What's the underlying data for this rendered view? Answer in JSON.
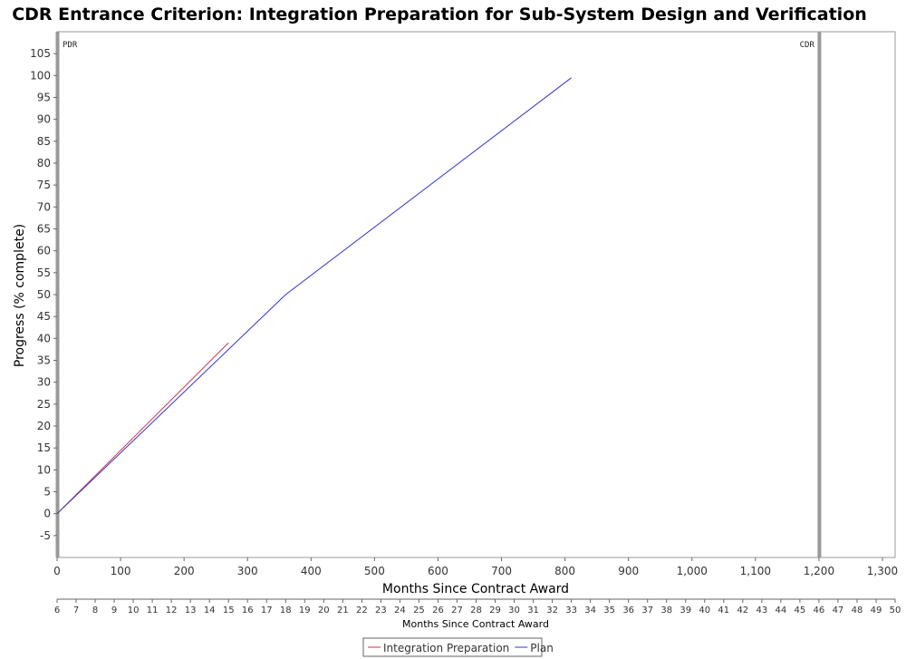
{
  "chart_data": {
    "type": "line",
    "title": "CDR Entrance Criterion: Integration Preparation for Sub-System Design and Verification",
    "xlabel": "Months Since Contract Award",
    "ylabel": "Progress (% complete)",
    "xlim": [
      0,
      1320
    ],
    "ylim": [
      -10,
      110
    ],
    "x_ticks": [
      "0",
      "100",
      "200",
      "300",
      "400",
      "500",
      "600",
      "700",
      "800",
      "900",
      "1,000",
      "1,100",
      "1,200",
      "1,300"
    ],
    "y_ticks": [
      "-5",
      "0",
      "5",
      "10",
      "15",
      "20",
      "25",
      "30",
      "35",
      "40",
      "45",
      "50",
      "55",
      "60",
      "65",
      "70",
      "75",
      "80",
      "85",
      "90",
      "95",
      "100",
      "105"
    ],
    "grid": false,
    "secondary_axis": {
      "label": "Months Since Contract Award",
      "ticks": [
        "6",
        "7",
        "8",
        "9",
        "10",
        "11",
        "12",
        "13",
        "14",
        "15",
        "16",
        "17",
        "18",
        "19",
        "20",
        "21",
        "22",
        "23",
        "24",
        "25",
        "26",
        "27",
        "28",
        "29",
        "30",
        "31",
        "32",
        "33",
        "34",
        "35",
        "36",
        "37",
        "38",
        "39",
        "40",
        "41",
        "42",
        "43",
        "44",
        "45",
        "46",
        "47",
        "48",
        "49",
        "50"
      ]
    },
    "markers": [
      {
        "label": "PDR",
        "x": 0
      },
      {
        "label": "CDR",
        "x": 1200
      }
    ],
    "series": [
      {
        "name": "Integration Preparation",
        "color": "#cc3355",
        "x": [
          0,
          270
        ],
        "y": [
          0,
          39
        ]
      },
      {
        "name": "Plan",
        "color": "#3333cc",
        "x": [
          0,
          360,
          810
        ],
        "y": [
          0,
          50,
          99.5
        ]
      }
    ],
    "legend_position": "bottom-center"
  }
}
